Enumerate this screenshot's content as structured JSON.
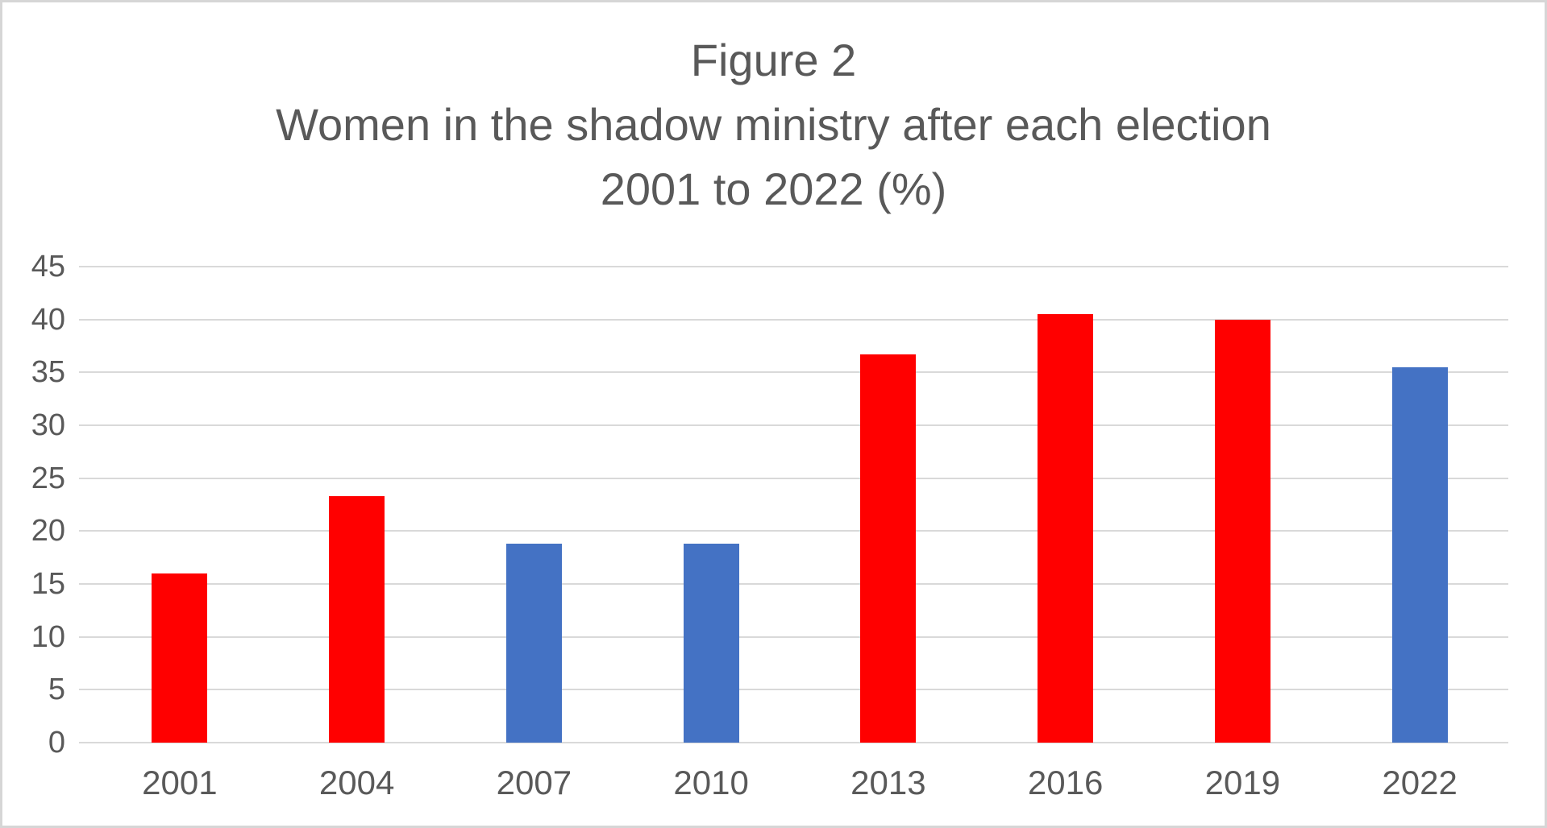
{
  "title": {
    "line1": "Figure 2",
    "line2": "Women in the shadow ministry after each election",
    "line3": "2001 to 2022 (%)"
  },
  "chart_data": {
    "type": "bar",
    "title": "Figure 2 — Women in the shadow ministry after each election 2001 to 2022 (%)",
    "categories": [
      "2001",
      "2004",
      "2007",
      "2010",
      "2013",
      "2016",
      "2019",
      "2022"
    ],
    "values": [
      16,
      23.3,
      18.8,
      18.8,
      36.7,
      40.5,
      40,
      35.5
    ],
    "bar_colors": [
      "#FF0000",
      "#FF0000",
      "#4472C4",
      "#4472C4",
      "#FF0000",
      "#FF0000",
      "#FF0000",
      "#4472C4"
    ],
    "xlabel": "",
    "ylabel": "",
    "ylim": [
      0,
      45
    ],
    "yticks": [
      0,
      5,
      10,
      15,
      20,
      25,
      30,
      35,
      40,
      45
    ],
    "grid": true,
    "legend": false,
    "colors": {
      "red_series": "#FF0000",
      "blue_series": "#4472C4",
      "text": "#595959",
      "gridline": "#D9D9D9",
      "background": "#FFFFFF",
      "border": "#D6D6D6"
    }
  }
}
